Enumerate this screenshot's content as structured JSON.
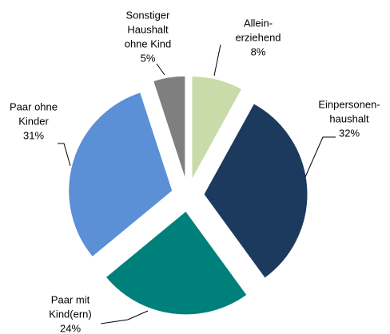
{
  "chart_data": {
    "type": "pie",
    "categories": [
      [
        "Allein-",
        "erziehend"
      ],
      [
        "Einpersonen-",
        "haushalt"
      ],
      [
        "Paar mit",
        "Kind(ern)"
      ],
      [
        "Paar ohne",
        "Kinder"
      ],
      [
        "Sonstiger",
        "Haushalt",
        "ohne Kind"
      ]
    ],
    "values": [
      8,
      32,
      24,
      31,
      5
    ],
    "value_labels": [
      "8%",
      "32%",
      "24%",
      "31%",
      "5%"
    ],
    "colors": [
      "#c9dba8",
      "#1c3a5e",
      "#00807a",
      "#5b8fd6",
      "#7f7f7f"
    ]
  }
}
